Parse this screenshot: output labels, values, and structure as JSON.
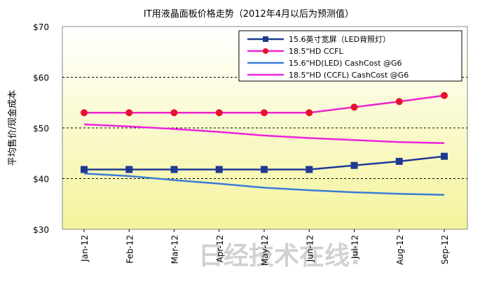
{
  "chart_data": {
    "type": "line",
    "title": "IT用液晶面板价格走势（2012年4月以后为预测值）",
    "xlabel": "",
    "ylabel": "平均售价/现金成本",
    "categories": [
      "Jan-12",
      "Feb-12",
      "Mar-12",
      "Apr-12",
      "May-12",
      "Jun-12",
      "Jul-12",
      "Aug-12",
      "Sep-12"
    ],
    "y_tick_labels": [
      "$30",
      "$40",
      "$50",
      "$60",
      "$70"
    ],
    "y_ticks": [
      30,
      40,
      50,
      60,
      70
    ],
    "ylim": [
      30,
      70
    ],
    "grid": "horizontal-dashed",
    "legend_position": "top-right",
    "background_gradient": [
      "#ffffff",
      "#f4f49c"
    ],
    "series": [
      {
        "name": "15.6英寸宽屏（LED背照灯）",
        "color": "#1f3a93",
        "marker": "square",
        "values": [
          41.8,
          41.8,
          41.8,
          41.8,
          41.8,
          41.8,
          42.6,
          43.4,
          44.4
        ]
      },
      {
        "name": "18.5\"HD CCFL",
        "color": "#e8112d",
        "line_color": "#ee22cc",
        "marker": "circle",
        "values": [
          53.0,
          53.0,
          53.0,
          53.0,
          53.0,
          53.0,
          54.1,
          55.2,
          56.4
        ]
      },
      {
        "name": "15.6\"HD(LED) CashCost @G6",
        "color": "#3a7bd5",
        "marker": "none",
        "values": [
          41.0,
          40.5,
          39.7,
          39.0,
          38.2,
          37.7,
          37.3,
          37.0,
          36.8
        ]
      },
      {
        "name": "18.5\"HD (CCFL) CashCost @G6",
        "color": "#ee22dd",
        "marker": "none",
        "values": [
          50.7,
          50.3,
          49.8,
          49.2,
          48.5,
          48.0,
          47.6,
          47.2,
          47.0
        ]
      }
    ]
  },
  "watermark": "日经技术在线!"
}
